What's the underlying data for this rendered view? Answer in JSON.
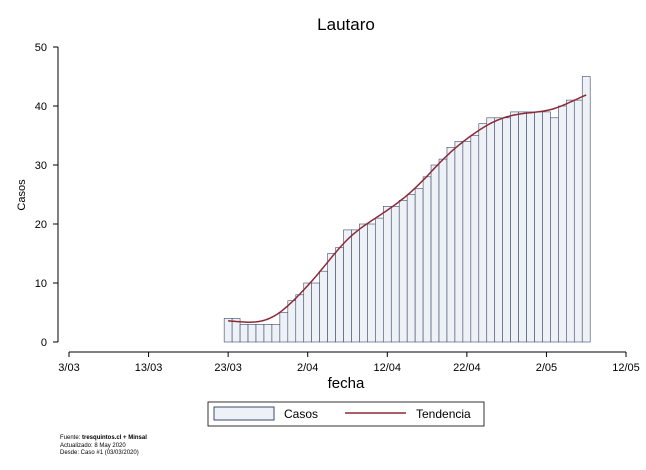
{
  "chart_data": {
    "type": "bar",
    "title": "Lautaro",
    "xlabel": "fecha",
    "ylabel": "Casos",
    "ylim": [
      0,
      50
    ],
    "yticks": [
      0,
      10,
      20,
      30,
      40,
      50
    ],
    "x_range_days": [
      0,
      70
    ],
    "x_ticks": [
      {
        "day": 0,
        "label": "3/03"
      },
      {
        "day": 10,
        "label": "13/03"
      },
      {
        "day": 20,
        "label": "23/03"
      },
      {
        "day": 30,
        "label": "2/04"
      },
      {
        "day": 40,
        "label": "12/04"
      },
      {
        "day": 50,
        "label": "22/04"
      },
      {
        "day": 60,
        "label": "2/05"
      },
      {
        "day": 70,
        "label": "12/05"
      }
    ],
    "x_start_date": "2020-03-03",
    "bar_start_day": 20,
    "series": [
      {
        "name": "Casos",
        "type": "bar",
        "color": "#eef1f6",
        "edge_color": "#3b4a6b",
        "values": [
          4,
          4,
          3,
          3,
          3,
          3,
          3,
          5,
          7,
          8,
          10,
          10,
          12,
          15,
          16,
          19,
          19,
          20,
          20,
          21,
          23,
          23,
          24,
          25,
          26,
          28,
          30,
          31,
          33,
          34,
          34,
          35,
          37,
          38,
          38,
          38,
          39,
          39,
          39,
          39,
          39,
          38,
          40,
          41,
          41,
          45
        ]
      },
      {
        "name": "Tendencia",
        "type": "line",
        "color": "#8b2a35"
      }
    ],
    "legend": {
      "position": "bottom",
      "entries": [
        "Casos",
        "Tendencia"
      ]
    },
    "grid": false
  },
  "source": {
    "fuente_prefix": "Fuente: ",
    "fuente_bold": "tresquintos.cl + Minsal",
    "actualizado": "Actualizado: 8 May 2020",
    "desde": "Desde: Caso #1  (03/03/2020)"
  }
}
